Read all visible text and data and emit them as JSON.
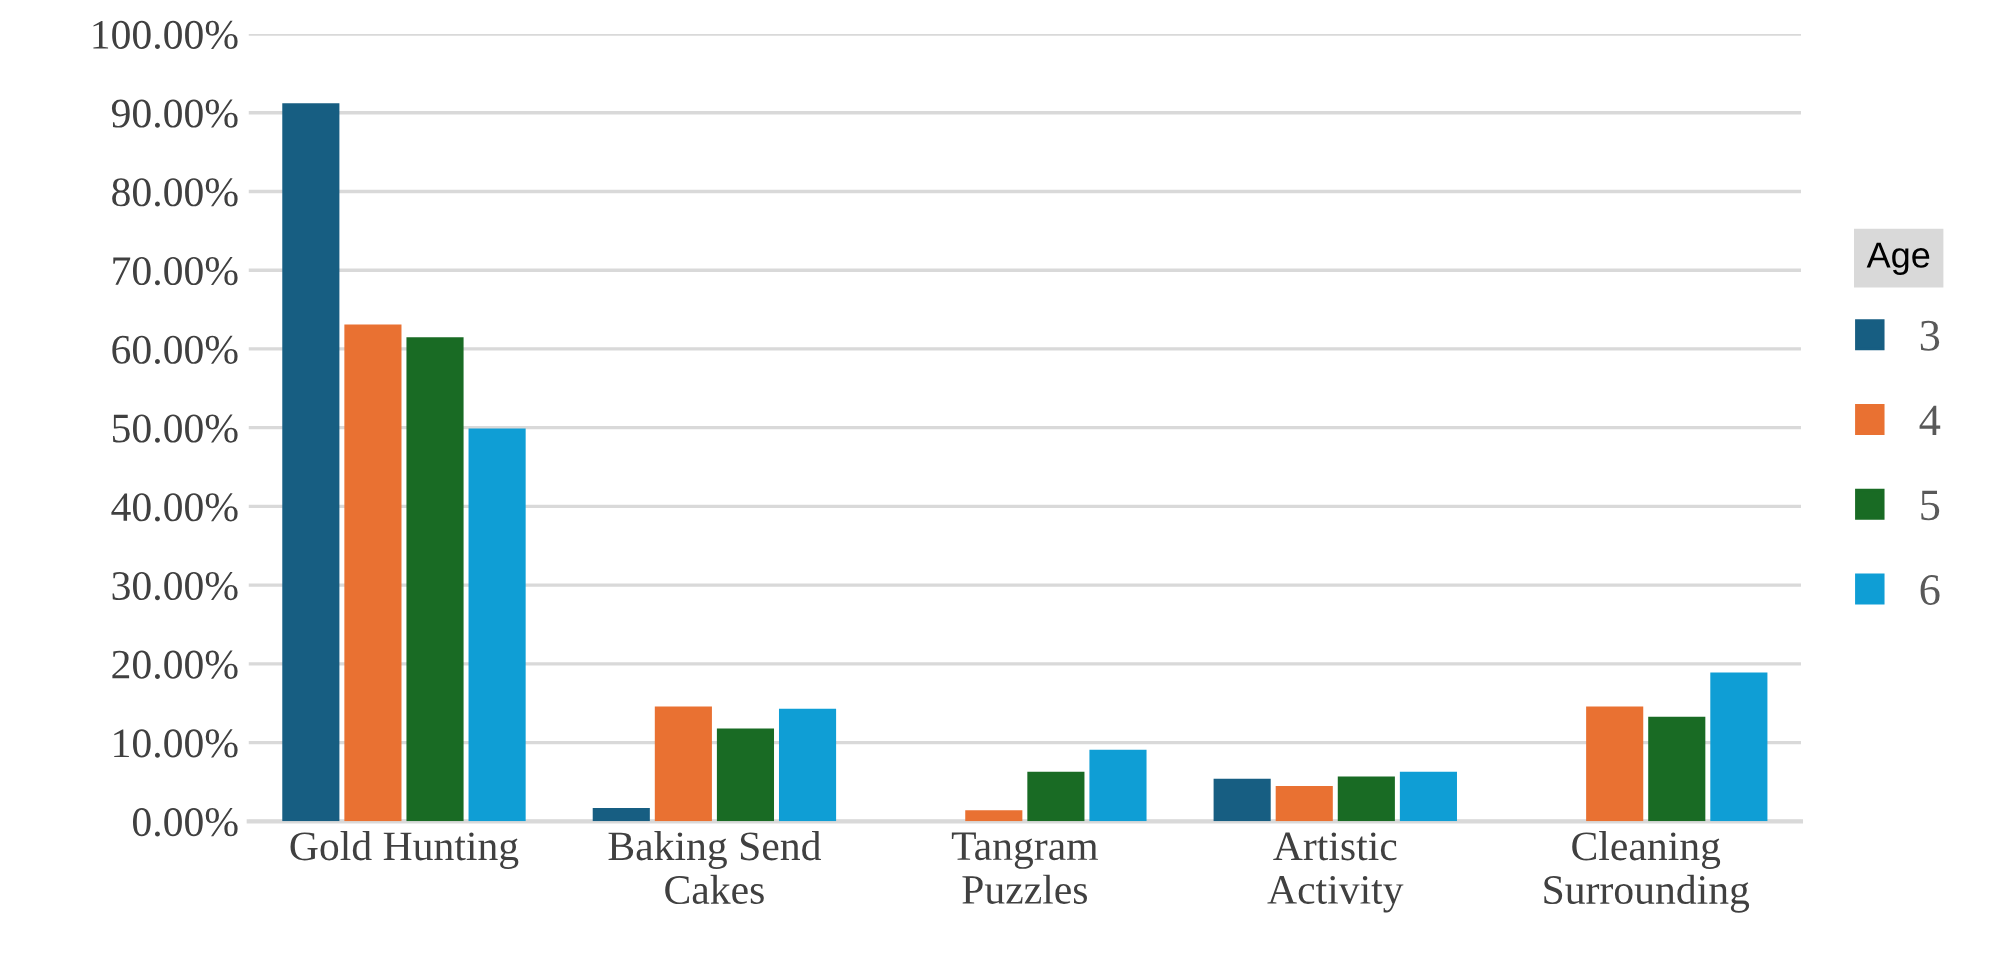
{
  "chart_data": {
    "type": "bar",
    "categories": [
      "Gold Hunting",
      "Baking Send\nCakes",
      "Tangram\nPuzzles",
      "Artistic\nActivity",
      "Cleaning\nSurrounding"
    ],
    "series": [
      {
        "name": "3",
        "color": "#175e82",
        "values": [
          91.2,
          1.7,
          null,
          5.4,
          null
        ]
      },
      {
        "name": "4",
        "color": "#e97132",
        "values": [
          63.1,
          14.6,
          1.4,
          4.5,
          14.6
        ]
      },
      {
        "name": "5",
        "color": "#196b24",
        "values": [
          61.5,
          11.8,
          6.3,
          5.7,
          13.3
        ]
      },
      {
        "name": "6",
        "color": "#0f9ed5",
        "values": [
          49.9,
          14.3,
          9.1,
          6.3,
          18.9
        ]
      }
    ],
    "legend_title": "Age",
    "legend": "right",
    "ylim": [
      0,
      100
    ],
    "yticks": [
      {
        "value": 0,
        "label": "0.00%"
      },
      {
        "value": 10,
        "label": "10.00%"
      },
      {
        "value": 20,
        "label": "20.00%"
      },
      {
        "value": 30,
        "label": "30.00%"
      },
      {
        "value": 40,
        "label": "40.00%"
      },
      {
        "value": 50,
        "label": "50.00%"
      },
      {
        "value": 60,
        "label": "60.00%"
      },
      {
        "value": 70,
        "label": "70.00%"
      },
      {
        "value": 80,
        "label": "80.00%"
      },
      {
        "value": 90,
        "label": "90.00%"
      },
      {
        "value": 100,
        "label": "100.00%"
      }
    ],
    "grid": "y"
  }
}
